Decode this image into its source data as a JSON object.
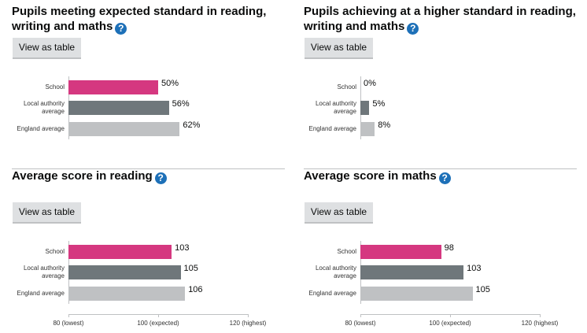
{
  "chart_data": [
    {
      "type": "bar",
      "title": "Pupils meeting expected standard in reading, writing and maths",
      "button": "View as table",
      "categories": [
        "School",
        "Local authority average",
        "England average"
      ],
      "values": [
        50,
        56,
        62
      ],
      "value_labels": [
        "50%",
        "56%",
        "62%"
      ],
      "colors": [
        "#d53880",
        "#6f777b",
        "#bfc1c3"
      ],
      "xlim": [
        0,
        100
      ]
    },
    {
      "type": "bar",
      "title": "Pupils achieving at a higher standard in reading, writing and maths",
      "button": "View as table",
      "categories": [
        "School",
        "Local authority average",
        "England average"
      ],
      "values": [
        0,
        5,
        8
      ],
      "value_labels": [
        "0%",
        "5%",
        "8%"
      ],
      "colors": [
        "#d53880",
        "#6f777b",
        "#bfc1c3"
      ],
      "xlim": [
        0,
        100
      ]
    },
    {
      "type": "bar",
      "title": "Average score in reading",
      "button": "View as table",
      "categories": [
        "School",
        "Local authority average",
        "England average"
      ],
      "values": [
        103,
        105,
        106
      ],
      "colors": [
        "#d53880",
        "#6f777b",
        "#bfc1c3"
      ],
      "xlim": [
        80,
        120
      ],
      "xticks": [
        {
          "value": 80,
          "label": "80 (lowest)"
        },
        {
          "value": 100,
          "label": "100 (expected)"
        },
        {
          "value": 120,
          "label": "120 (highest)"
        }
      ]
    },
    {
      "type": "bar",
      "title": "Average score in maths",
      "button": "View as table",
      "categories": [
        "School",
        "Local authority average",
        "England average"
      ],
      "values": [
        98,
        103,
        105
      ],
      "colors": [
        "#d53880",
        "#6f777b",
        "#bfc1c3"
      ],
      "xlim": [
        80,
        120
      ],
      "xticks": [
        {
          "value": 80,
          "label": "80 (lowest)"
        },
        {
          "value": 100,
          "label": "100 (expected)"
        },
        {
          "value": 120,
          "label": "120 (highest)"
        }
      ]
    }
  ]
}
